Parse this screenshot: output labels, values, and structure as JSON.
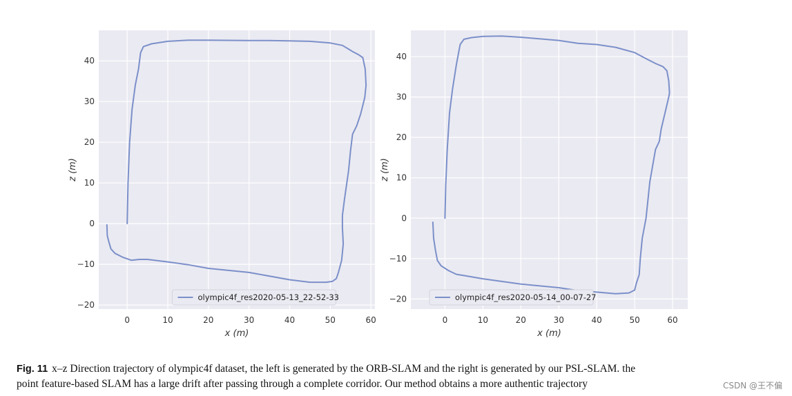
{
  "figure": {
    "caption_label": "Fig. 11",
    "caption_text_line1": "x–z Direction trajectory of olympic4f dataset, the left is generated by the ORB-SLAM and the right is generated by our PSL-SLAM. the",
    "caption_text_line2": "point feature-based SLAM has a large drift after passing through a complete corridor. Our method obtains a more authentic trajectory",
    "watermark": "CSDN @王不偏"
  },
  "chart_data": [
    {
      "type": "line",
      "xlabel": "x (m)",
      "ylabel": "z (m)",
      "xlim": [
        -7,
        61
      ],
      "ylim": [
        -21,
        47.5
      ],
      "xticks": [
        0,
        10,
        20,
        30,
        40,
        50,
        60
      ],
      "yticks": [
        -20,
        -10,
        0,
        10,
        20,
        30,
        40
      ],
      "grid": true,
      "legend_position": "bottom-center",
      "series": [
        {
          "name": "olympic4f_res2020-05-13_22-52-33",
          "color": "#7b8fc9",
          "x": [
            0,
            0.2,
            0.6,
            1.2,
            2.0,
            2.8,
            3.3,
            4.0,
            6,
            10,
            15,
            20,
            30,
            35,
            40,
            45,
            50,
            53,
            55.5,
            57,
            58,
            58.6,
            58.8,
            58.5,
            57.5,
            56.5,
            55.5,
            55.0,
            54.5,
            53.5,
            53.0,
            53.0,
            53.2,
            52.8,
            52.0,
            51.5,
            50.5,
            49,
            45,
            40,
            30,
            20,
            15,
            10,
            5,
            3,
            1,
            -1,
            -3,
            -4,
            -4.5,
            -4.9,
            -5.0
          ],
          "y": [
            0,
            10,
            20,
            28,
            34,
            38,
            42,
            43.5,
            44.2,
            44.8,
            45.1,
            45.1,
            45.0,
            45.0,
            44.9,
            44.8,
            44.4,
            43.8,
            42.3,
            41.5,
            40.8,
            38,
            34,
            31,
            27,
            24,
            22,
            18,
            13,
            6,
            2,
            -1,
            -5,
            -9,
            -12,
            -13.5,
            -14.2,
            -14.4,
            -14.4,
            -13.8,
            -12,
            -11,
            -10.1,
            -9.4,
            -8.8,
            -8.8,
            -9.0,
            -8.3,
            -7.3,
            -6.2,
            -4.5,
            -3.0,
            -0.3
          ]
        }
      ]
    },
    {
      "type": "line",
      "xlabel": "x (m)",
      "ylabel": "z (m)",
      "xlim": [
        -9,
        64
      ],
      "ylim": [
        -22.5,
        46.5
      ],
      "xticks": [
        0,
        10,
        20,
        30,
        40,
        50,
        60
      ],
      "yticks": [
        -20,
        -10,
        0,
        10,
        20,
        30,
        40
      ],
      "grid": true,
      "legend_position": "bottom-center",
      "series": [
        {
          "name": "olympic4f_res2020-05-14_00-07-27",
          "color": "#7b8fc9",
          "x": [
            0,
            0.2,
            0.6,
            1.2,
            2.0,
            3.0,
            4.0,
            5.0,
            7,
            10,
            15,
            20,
            30,
            35,
            40,
            45,
            50,
            53,
            55.5,
            57.5,
            58.5,
            59.0,
            59.2,
            59.0,
            58.0,
            57.0,
            56.5,
            55.5,
            54.0,
            53.0,
            52.0,
            51.5,
            51.2,
            50.5,
            50.0,
            48.5,
            45,
            40,
            35,
            30,
            20,
            10,
            5,
            3,
            1,
            -1,
            -2,
            -2.5,
            -3.0,
            -3.2
          ],
          "y": [
            0,
            8,
            17,
            26,
            32,
            38,
            43,
            44.3,
            44.7,
            45.0,
            45.1,
            44.8,
            44.0,
            43.3,
            43.0,
            42.3,
            41.0,
            39.5,
            38.3,
            37.5,
            36.5,
            34,
            31,
            30,
            26,
            22,
            19,
            17,
            9,
            0,
            -5,
            -10,
            -14,
            -16,
            -17.8,
            -18.5,
            -18.7,
            -18.3,
            -17.9,
            -17.2,
            -16.3,
            -15.0,
            -14.2,
            -13.9,
            -13.0,
            -11.8,
            -10.5,
            -8.0,
            -5.0,
            -1.0
          ]
        }
      ]
    }
  ]
}
